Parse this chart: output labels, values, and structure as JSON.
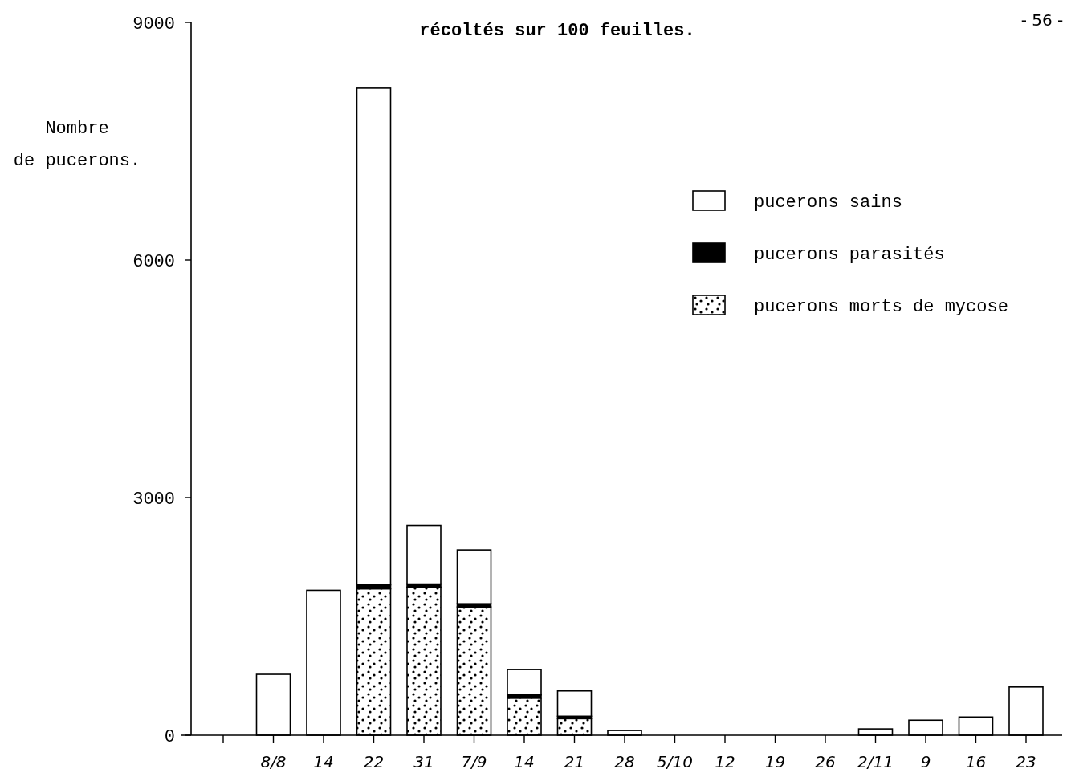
{
  "chart_data": {
    "type": "bar",
    "stacked": true,
    "title": "récoltés sur 100 feuilles.",
    "ylabel": "Nombre\nde pucerons.",
    "annotations": [
      "- 56 -"
    ],
    "categories": [
      null,
      "8/8",
      "14",
      "22",
      "31",
      "7/9",
      "14",
      "21",
      "28",
      "5/10",
      "12",
      "19",
      "26",
      "2/11",
      "9",
      "16",
      "23"
    ],
    "series": [
      {
        "name": "pucerons morts de mycose",
        "color": "#000000",
        "values": [
          null,
          0,
          0,
          1850,
          1870,
          1620,
          470,
          210,
          0,
          0,
          0,
          0,
          0,
          0,
          0,
          0,
          0
        ]
      },
      {
        "name": "pucerons parasités",
        "color": "#000000",
        "values": [
          null,
          0,
          0,
          50,
          40,
          40,
          40,
          30,
          0,
          0,
          0,
          0,
          0,
          0,
          0,
          0,
          0
        ]
      },
      {
        "name": "pucerons sains",
        "color": "#ffffff",
        "values": [
          null,
          770,
          1830,
          6270,
          740,
          680,
          320,
          320,
          60,
          0,
          0,
          0,
          0,
          80,
          190,
          230,
          610
        ]
      }
    ],
    "ylim": [
      0,
      9000
    ],
    "yticks": [
      0,
      3000,
      6000,
      9000
    ],
    "grid": false,
    "legend": "top right"
  }
}
